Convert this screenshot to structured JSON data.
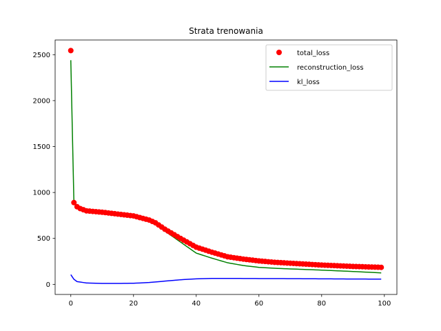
{
  "chart_data": {
    "type": "line",
    "title": "Strata trenowania",
    "xlabel": "",
    "ylabel": "",
    "xlim": [
      -5,
      104
    ],
    "ylim": [
      -110,
      2660
    ],
    "xticks": [
      0,
      20,
      40,
      60,
      80,
      100
    ],
    "yticks": [
      0,
      500,
      1000,
      1500,
      2000,
      2500
    ],
    "grid": false,
    "legend": "top-right",
    "epochs": {
      "start": 0,
      "end": 99
    },
    "series": [
      {
        "name": "total_loss",
        "style": "scatter",
        "color": "#ff0000",
        "keyframes": [
          [
            0,
            2545
          ],
          [
            1,
            890
          ],
          [
            2,
            845
          ],
          [
            3,
            825
          ],
          [
            5,
            800
          ],
          [
            10,
            785
          ],
          [
            15,
            765
          ],
          [
            20,
            745
          ],
          [
            25,
            700
          ],
          [
            27,
            670
          ],
          [
            30,
            600
          ],
          [
            35,
            500
          ],
          [
            40,
            405
          ],
          [
            45,
            350
          ],
          [
            50,
            300
          ],
          [
            55,
            275
          ],
          [
            60,
            255
          ],
          [
            65,
            240
          ],
          [
            70,
            230
          ],
          [
            80,
            210
          ],
          [
            90,
            195
          ],
          [
            99,
            185
          ]
        ]
      },
      {
        "name": "reconstruction_loss",
        "style": "line",
        "color": "#008000",
        "keyframes": [
          [
            0,
            2440
          ],
          [
            1,
            880
          ],
          [
            2,
            840
          ],
          [
            3,
            818
          ],
          [
            5,
            795
          ],
          [
            10,
            780
          ],
          [
            15,
            758
          ],
          [
            20,
            738
          ],
          [
            25,
            690
          ],
          [
            27,
            660
          ],
          [
            30,
            580
          ],
          [
            35,
            460
          ],
          [
            40,
            340
          ],
          [
            45,
            285
          ],
          [
            50,
            235
          ],
          [
            55,
            205
          ],
          [
            60,
            185
          ],
          [
            65,
            175
          ],
          [
            70,
            168
          ],
          [
            80,
            155
          ],
          [
            90,
            140
          ],
          [
            99,
            125
          ]
        ]
      },
      {
        "name": "kl_loss",
        "style": "line",
        "color": "#0000ff",
        "keyframes": [
          [
            0,
            105
          ],
          [
            1,
            55
          ],
          [
            2,
            30
          ],
          [
            5,
            15
          ],
          [
            10,
            10
          ],
          [
            15,
            10
          ],
          [
            20,
            12
          ],
          [
            25,
            20
          ],
          [
            30,
            35
          ],
          [
            35,
            50
          ],
          [
            40,
            60
          ],
          [
            45,
            65
          ],
          [
            50,
            65
          ],
          [
            60,
            63
          ],
          [
            70,
            62
          ],
          [
            80,
            60
          ],
          [
            90,
            58
          ],
          [
            99,
            57
          ]
        ]
      }
    ]
  }
}
